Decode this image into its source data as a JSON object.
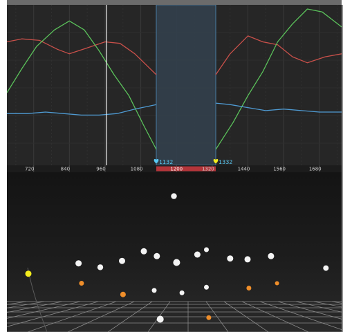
{
  "timeline": {
    "ticks": [
      "720",
      "840",
      "960",
      "1080",
      "1200",
      "1320",
      "1440",
      "1560",
      "1680"
    ],
    "tick_values": [
      720,
      840,
      960,
      1080,
      1200,
      1320,
      1440,
      1560,
      1680
    ],
    "x_range": [
      630,
      1755
    ],
    "playhead_frame": 965,
    "selection": {
      "start_frame": 1132,
      "end_frame": 1332,
      "start_label": "1132",
      "end_label": "1332",
      "center_label": "1200"
    }
  },
  "curve_editor": {
    "y_range": [
      0,
      1
    ],
    "curves": [
      {
        "color": "#c9504a",
        "points": [
          [
            630,
            0.78
          ],
          [
            680,
            0.8
          ],
          [
            740,
            0.79
          ],
          [
            800,
            0.73
          ],
          [
            840,
            0.7
          ],
          [
            900,
            0.74
          ],
          [
            960,
            0.78
          ],
          [
            1010,
            0.77
          ],
          [
            1060,
            0.7
          ],
          [
            1132,
            0.56
          ],
          [
            1332,
            0.56
          ],
          [
            1380,
            0.7
          ],
          [
            1440,
            0.82
          ],
          [
            1490,
            0.78
          ],
          [
            1540,
            0.76
          ],
          [
            1590,
            0.68
          ],
          [
            1640,
            0.64
          ],
          [
            1700,
            0.68
          ],
          [
            1755,
            0.7
          ]
        ]
      },
      {
        "color": "#5bc25b",
        "points": [
          [
            630,
            0.44
          ],
          [
            680,
            0.6
          ],
          [
            730,
            0.75
          ],
          [
            790,
            0.86
          ],
          [
            840,
            0.92
          ],
          [
            890,
            0.86
          ],
          [
            940,
            0.72
          ],
          [
            990,
            0.56
          ],
          [
            1040,
            0.42
          ],
          [
            1090,
            0.22
          ],
          [
            1132,
            0.06
          ],
          [
            1332,
            0.06
          ],
          [
            1390,
            0.24
          ],
          [
            1440,
            0.42
          ],
          [
            1490,
            0.58
          ],
          [
            1540,
            0.78
          ],
          [
            1590,
            0.9
          ],
          [
            1640,
            1.0
          ],
          [
            1690,
            0.98
          ],
          [
            1755,
            0.88
          ]
        ]
      },
      {
        "color": "#4f9bd3",
        "points": [
          [
            630,
            0.3
          ],
          [
            700,
            0.3
          ],
          [
            760,
            0.31
          ],
          [
            820,
            0.3
          ],
          [
            880,
            0.29
          ],
          [
            940,
            0.29
          ],
          [
            1000,
            0.3
          ],
          [
            1060,
            0.33
          ],
          [
            1132,
            0.36
          ],
          [
            1332,
            0.37
          ],
          [
            1380,
            0.36
          ],
          [
            1440,
            0.34
          ],
          [
            1500,
            0.32
          ],
          [
            1560,
            0.33
          ],
          [
            1620,
            0.32
          ],
          [
            1680,
            0.31
          ],
          [
            1755,
            0.31
          ]
        ]
      }
    ]
  },
  "viewport": {
    "colors": {
      "white": "#f4f4f4",
      "orange": "#ef8e2a",
      "yellow": "#f3ec1d"
    },
    "objects": [
      {
        "u": 0.499,
        "v": 0.15,
        "r": 4.2,
        "color": "white"
      },
      {
        "u": 0.214,
        "v": 0.57,
        "r": 4.5,
        "color": "white"
      },
      {
        "u": 0.279,
        "v": 0.595,
        "r": 4.2,
        "color": "white"
      },
      {
        "u": 0.344,
        "v": 0.555,
        "r": 4.5,
        "color": "white"
      },
      {
        "u": 0.409,
        "v": 0.495,
        "r": 4.5,
        "color": "white"
      },
      {
        "u": 0.448,
        "v": 0.525,
        "r": 4.5,
        "color": "white"
      },
      {
        "u": 0.507,
        "v": 0.565,
        "r": 5.0,
        "color": "white"
      },
      {
        "u": 0.569,
        "v": 0.515,
        "r": 4.5,
        "color": "white"
      },
      {
        "u": 0.596,
        "v": 0.485,
        "r": 3.5,
        "color": "white"
      },
      {
        "u": 0.667,
        "v": 0.54,
        "r": 4.5,
        "color": "white"
      },
      {
        "u": 0.719,
        "v": 0.545,
        "r": 4.5,
        "color": "white"
      },
      {
        "u": 0.789,
        "v": 0.525,
        "r": 4.5,
        "color": "white"
      },
      {
        "u": 0.953,
        "v": 0.6,
        "r": 4.0,
        "color": "white"
      },
      {
        "u": 0.44,
        "v": 0.74,
        "r": 3.5,
        "color": "white"
      },
      {
        "u": 0.523,
        "v": 0.755,
        "r": 3.5,
        "color": "white"
      },
      {
        "u": 0.596,
        "v": 0.72,
        "r": 3.5,
        "color": "white"
      },
      {
        "u": 0.458,
        "v": 0.92,
        "r": 5.0,
        "color": "white"
      },
      {
        "u": 0.223,
        "v": 0.695,
        "r": 3.5,
        "color": "orange"
      },
      {
        "u": 0.347,
        "v": 0.765,
        "r": 4.0,
        "color": "orange"
      },
      {
        "u": 0.723,
        "v": 0.725,
        "r": 3.5,
        "color": "orange"
      },
      {
        "u": 0.807,
        "v": 0.695,
        "r": 3.0,
        "color": "orange"
      },
      {
        "u": 0.603,
        "v": 0.91,
        "r": 3.5,
        "color": "orange"
      },
      {
        "u": 0.064,
        "v": 0.635,
        "r": 4.5,
        "color": "yellow"
      }
    ]
  }
}
